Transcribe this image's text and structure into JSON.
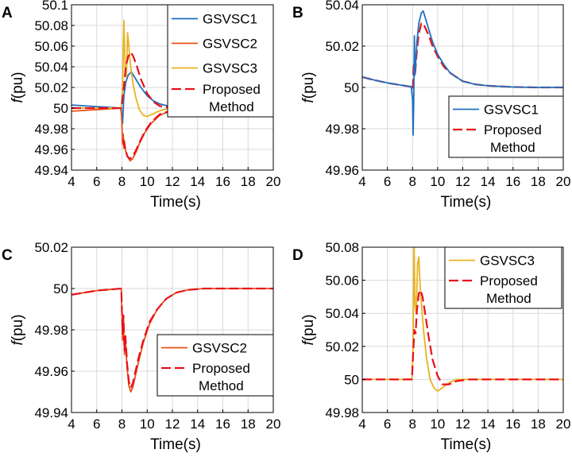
{
  "colors": {
    "GSVSC1": "#1f6fbf",
    "GSVSC2": "#e8501a",
    "GSVSC3": "#eab21e",
    "Proposed": "#e8101a",
    "grid": "#d9d9d9"
  },
  "chart_data": [
    {
      "panel": "A",
      "type": "line",
      "xlabel": "Time(s)",
      "ylabel": "f(pu)",
      "xlim": [
        4,
        20
      ],
      "ylim": [
        49.94,
        50.1
      ],
      "xticks": [
        4,
        6,
        8,
        10,
        12,
        14,
        16,
        18,
        20
      ],
      "yticks": [
        49.94,
        49.96,
        49.98,
        50,
        50.02,
        50.04,
        50.06,
        50.08,
        50.1
      ],
      "ytick_labels": [
        "49.94",
        "49.96",
        "49.98",
        "50",
        "50.02",
        "50.04",
        "50.06",
        "50.08",
        "50.1"
      ],
      "legend_position": "top-right",
      "series": [
        {
          "name": "GSVSC1",
          "color_key": "GSVSC1",
          "style": "solid",
          "x": [
            4,
            7.9,
            8.05,
            8.15,
            8.3,
            8.5,
            8.75,
            9,
            9.5,
            10,
            10.5,
            11,
            12,
            13,
            14,
            16,
            20
          ],
          "y": [
            50.003,
            50.0,
            49.985,
            50.012,
            50.025,
            50.032,
            50.035,
            50.03,
            50.02,
            50.012,
            50.007,
            50.004,
            50.001,
            50.0,
            50.0,
            50.0,
            50.0
          ]
        },
        {
          "name": "GSVSC2",
          "color_key": "GSVSC2",
          "style": "solid",
          "x": [
            4,
            7.95,
            8.05,
            8.1,
            8.15,
            8.2,
            8.3,
            8.45,
            8.65,
            8.85,
            9.1,
            9.4,
            9.8,
            10.3,
            11,
            12,
            13,
            14,
            16,
            20
          ],
          "y": [
            49.997,
            50.0,
            49.965,
            49.975,
            49.961,
            49.968,
            49.958,
            49.953,
            49.949,
            49.951,
            49.957,
            49.966,
            49.976,
            49.985,
            49.993,
            49.998,
            49.999,
            50.0,
            50.0,
            50.0
          ]
        },
        {
          "name": "GSVSC3",
          "color_key": "GSVSC3",
          "style": "solid",
          "x": [
            4,
            7.95,
            8.05,
            8.15,
            8.25,
            8.35,
            8.45,
            8.55,
            8.65,
            8.75,
            8.9,
            9.1,
            9.4,
            9.7,
            10,
            10.4,
            10.9,
            11.5,
            12.5,
            14,
            20
          ],
          "y": [
            50.0,
            50.0,
            50.02,
            50.085,
            50.04,
            50.03,
            50.073,
            50.06,
            50.045,
            50.035,
            50.022,
            50.01,
            49.998,
            49.993,
            49.992,
            49.994,
            49.997,
            49.999,
            50.0,
            50.0,
            50.0
          ]
        },
        {
          "name": "Proposed Method",
          "color_key": "Proposed",
          "style": "dashed",
          "x": [
            4,
            7.95,
            8.05,
            8.15,
            8.3,
            8.5,
            8.7,
            8.9,
            9.2,
            9.5,
            10,
            10.5,
            11,
            12,
            13,
            14,
            20
          ],
          "y": [
            50.0,
            50.0,
            50.01,
            50.02,
            50.04,
            50.05,
            50.054,
            50.05,
            50.04,
            50.028,
            50.014,
            50.006,
            50.002,
            50.0,
            50.0,
            50.0,
            50.0
          ]
        },
        {
          "name": "Proposed Method",
          "color_key": "Proposed",
          "style": "dashed",
          "legend": false,
          "x": [
            8.1,
            8.25,
            8.45,
            8.65,
            8.85,
            9.1,
            9.4,
            9.8,
            10.3,
            11,
            12,
            13
          ],
          "y": [
            49.97,
            49.96,
            49.953,
            49.951,
            49.953,
            49.959,
            49.967,
            49.977,
            49.986,
            49.994,
            49.998,
            50.0
          ]
        }
      ],
      "legend": [
        {
          "label": "GSVSC1",
          "color_key": "GSVSC1",
          "style": "solid"
        },
        {
          "label": "GSVSC2",
          "color_key": "GSVSC2",
          "style": "solid"
        },
        {
          "label": "GSVSC3",
          "color_key": "GSVSC3",
          "style": "solid"
        },
        {
          "label": "Proposed",
          "label2": "Method",
          "color_key": "Proposed",
          "style": "dashed"
        }
      ]
    },
    {
      "panel": "B",
      "type": "line",
      "xlabel": "Time(s)",
      "ylabel": "f(pu)",
      "xlim": [
        4,
        20
      ],
      "ylim": [
        49.96,
        50.04
      ],
      "xticks": [
        4,
        6,
        8,
        10,
        12,
        14,
        16,
        18,
        20
      ],
      "yticks": [
        49.96,
        49.98,
        50,
        50.02,
        50.04
      ],
      "ytick_labels": [
        "49.96",
        "49.98",
        "50",
        "50.02",
        "50.04"
      ],
      "legend_position": "bottom-right",
      "series": [
        {
          "name": "Proposed Method",
          "color_key": "Proposed",
          "style": "dashed",
          "x": [
            4,
            5,
            6,
            7,
            7.9,
            8.02,
            8.1,
            8.2,
            8.35,
            8.5,
            8.7,
            8.85,
            9.0,
            9.3,
            9.6,
            10,
            10.5,
            11,
            12,
            13,
            14,
            16,
            18,
            20
          ],
          "y": [
            50.005,
            50.0035,
            50.0022,
            50.0012,
            50.0003,
            49.999,
            50.012,
            50.006,
            50.018,
            50.026,
            50.031,
            50.031,
            50.029,
            50.025,
            50.02,
            50.015,
            50.01,
            50.007,
            50.003,
            50.0015,
            50.0008,
            50.0002,
            50.0,
            50.0
          ]
        },
        {
          "name": "GSVSC1",
          "color_key": "GSVSC1",
          "style": "solid",
          "x": [
            4,
            5,
            6,
            7,
            7.9,
            8.0,
            8.05,
            8.1,
            8.15,
            8.2,
            8.35,
            8.5,
            8.7,
            8.85,
            9.0,
            9.3,
            9.6,
            10,
            10.5,
            11,
            12,
            13,
            14,
            16,
            18,
            20
          ],
          "y": [
            50.005,
            50.0035,
            50.0022,
            50.0012,
            50.0003,
            49.994,
            49.977,
            49.994,
            50.025,
            50.006,
            50.022,
            50.031,
            50.036,
            50.037,
            50.034,
            50.028,
            50.022,
            50.016,
            50.011,
            50.007,
            50.003,
            50.0015,
            50.0008,
            50.0002,
            50.0,
            50.0
          ]
        }
      ],
      "legend": [
        {
          "label": "GSVSC1",
          "color_key": "GSVSC1",
          "style": "solid"
        },
        {
          "label": "Proposed",
          "label2": "Method",
          "color_key": "Proposed",
          "style": "dashed"
        }
      ]
    },
    {
      "panel": "C",
      "type": "line",
      "xlabel": "Time(s)",
      "ylabel": "f(pu)",
      "xlim": [
        4,
        20
      ],
      "ylim": [
        49.94,
        50.02
      ],
      "xticks": [
        4,
        6,
        8,
        10,
        12,
        14,
        16,
        18,
        20
      ],
      "yticks": [
        49.94,
        49.96,
        49.98,
        50,
        50.02
      ],
      "ytick_labels": [
        "49.94",
        "49.96",
        "49.98",
        "50",
        "50.02"
      ],
      "legend_position": "bottom-right",
      "series": [
        {
          "name": "GSVSC2",
          "color_key": "GSVSC2",
          "style": "solid",
          "x": [
            4,
            5,
            6,
            7,
            7.95,
            8.05,
            8.12,
            8.2,
            8.28,
            8.4,
            8.55,
            8.7,
            8.85,
            9.0,
            9.3,
            9.7,
            10.2,
            10.8,
            11.5,
            12.3,
            13.2,
            14.5,
            16,
            20
          ],
          "y": [
            49.997,
            49.998,
            49.999,
            49.9995,
            50.0,
            49.975,
            49.985,
            49.968,
            49.975,
            49.962,
            49.953,
            49.95,
            49.952,
            49.956,
            49.964,
            49.974,
            49.983,
            49.99,
            49.995,
            49.998,
            49.9993,
            50.0,
            50.0,
            50.0
          ]
        },
        {
          "name": "Proposed Method",
          "color_key": "Proposed",
          "style": "dashed",
          "x": [
            4,
            5,
            6,
            7,
            7.95,
            8.05,
            8.12,
            8.2,
            8.28,
            8.4,
            8.55,
            8.7,
            8.85,
            9.0,
            9.3,
            9.7,
            10.2,
            10.8,
            11.5,
            12.3,
            13.2,
            14.5,
            16,
            20
          ],
          "y": [
            49.997,
            49.998,
            49.999,
            49.9995,
            50.0,
            49.978,
            49.987,
            49.97,
            49.977,
            49.964,
            49.955,
            49.952,
            49.954,
            49.958,
            49.966,
            49.975,
            49.984,
            49.99,
            49.995,
            49.998,
            49.9993,
            50.0,
            50.0,
            50.0
          ]
        }
      ],
      "legend": [
        {
          "label": "GSVSC2",
          "color_key": "GSVSC2",
          "style": "solid"
        },
        {
          "label": "Proposed",
          "label2": "Method",
          "color_key": "Proposed",
          "style": "dashed"
        }
      ]
    },
    {
      "panel": "D",
      "type": "line",
      "xlabel": "Time(s)",
      "ylabel": "f(pu)",
      "xlim": [
        4,
        20
      ],
      "ylim": [
        49.98,
        50.08
      ],
      "xticks": [
        4,
        6,
        8,
        10,
        12,
        14,
        16,
        18,
        20
      ],
      "yticks": [
        49.98,
        50,
        50.02,
        50.04,
        50.06,
        50.08
      ],
      "ytick_labels": [
        "49.98",
        "50",
        "50.02",
        "50.04",
        "50.06",
        "50.08"
      ],
      "legend_position": "top-right",
      "series": [
        {
          "name": "GSVSC3",
          "color_key": "GSVSC3",
          "style": "solid",
          "x": [
            4,
            6,
            7.95,
            8.05,
            8.12,
            8.2,
            8.3,
            8.4,
            8.5,
            8.6,
            8.75,
            8.9,
            9.1,
            9.4,
            9.7,
            10.0,
            10.4,
            10.9,
            11.5,
            12.5,
            14,
            16,
            20
          ],
          "y": [
            50.0,
            50.0,
            50.0,
            50.02,
            50.085,
            50.045,
            50.04,
            50.07,
            50.074,
            50.058,
            50.042,
            50.028,
            50.014,
            50.0,
            49.995,
            49.993,
            49.995,
            49.998,
            50.0,
            50.0,
            50.0,
            50.0,
            50.0
          ]
        },
        {
          "name": "Proposed Method",
          "color_key": "Proposed",
          "style": "dashed",
          "x": [
            4,
            6,
            7.95,
            8.05,
            8.15,
            8.25,
            8.35,
            8.5,
            8.65,
            8.8,
            9.0,
            9.3,
            9.6,
            10.0,
            10.4,
            10.9,
            11.5,
            12.5,
            14,
            20
          ],
          "y": [
            50.0,
            50.0,
            50.0,
            50.015,
            50.03,
            50.028,
            50.042,
            50.052,
            50.054,
            50.05,
            50.04,
            50.025,
            50.012,
            50.002,
            49.997,
            49.997,
            49.999,
            50.0,
            50.0,
            50.0
          ]
        }
      ],
      "legend": [
        {
          "label": "GSVSC3",
          "color_key": "GSVSC3",
          "style": "solid"
        },
        {
          "label": "Proposed",
          "label2": "Method",
          "color_key": "Proposed",
          "style": "dashed"
        }
      ]
    }
  ]
}
